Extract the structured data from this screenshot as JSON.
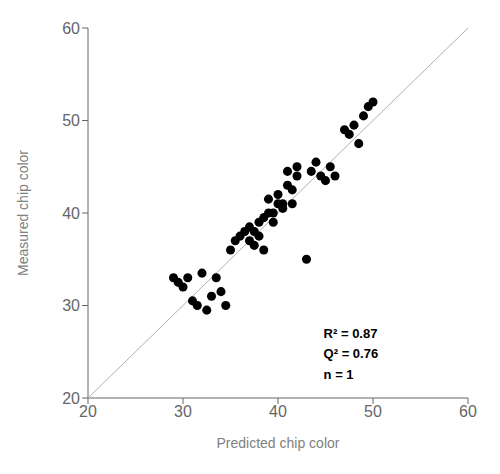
{
  "chart_data": {
    "type": "scatter",
    "xlabel": "Predicted chip color",
    "ylabel": "Measured chip color",
    "annotations": [
      "R² = 0.87\nQ² = 0.76\nn = 1"
    ],
    "xlim": [
      20,
      60
    ],
    "ylim": [
      20,
      60
    ],
    "xticks": [
      20,
      30,
      40,
      50,
      60
    ],
    "yticks": [
      20,
      30,
      40,
      50,
      60
    ],
    "grid": false,
    "series": [
      {
        "type": "line",
        "color": "#b0b0b0",
        "x": [
          20,
          60
        ],
        "values": [
          20,
          60
        ]
      },
      {
        "type": "scatter",
        "color": "#000000",
        "x": [
          29.0,
          29.5,
          30.0,
          30.5,
          31.0,
          31.5,
          32.0,
          32.5,
          33.0,
          33.5,
          34.0,
          34.5,
          35.0,
          35.5,
          36.0,
          36.5,
          37.0,
          37.0,
          37.5,
          37.5,
          38.0,
          38.0,
          38.5,
          38.5,
          39.0,
          39.0,
          39.5,
          39.5,
          40.0,
          40.0,
          40.5,
          40.5,
          41.0,
          41.0,
          41.5,
          41.5,
          42.0,
          42.0,
          43.0,
          43.5,
          44.0,
          44.5,
          45.0,
          45.5,
          46.0,
          47.0,
          47.5,
          48.0,
          48.5,
          49.0,
          49.5,
          50.0
        ],
        "values": [
          33.0,
          32.5,
          32.0,
          33.0,
          30.5,
          30.0,
          33.5,
          29.5,
          31.0,
          33.0,
          31.5,
          30.0,
          36.0,
          37.0,
          37.5,
          38.0,
          37.0,
          38.5,
          36.5,
          38.0,
          37.5,
          39.0,
          36.0,
          39.5,
          40.0,
          41.5,
          39.0,
          40.0,
          41.0,
          42.0,
          40.5,
          41.0,
          43.0,
          44.5,
          41.0,
          42.5,
          44.0,
          45.0,
          35.0,
          44.5,
          45.5,
          44.0,
          43.5,
          45.0,
          44.0,
          49.0,
          48.5,
          49.5,
          47.5,
          50.5,
          51.5,
          52.0
        ]
      }
    ]
  }
}
